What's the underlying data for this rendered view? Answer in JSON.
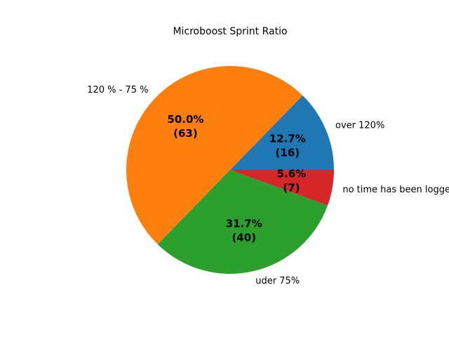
{
  "chart_data": {
    "type": "pie",
    "title": "Microboost Sprint Ratio",
    "slices": [
      {
        "label": "over 120%",
        "value": 16,
        "percent_label": "12.7%",
        "count_label": "(16)",
        "color": "#1f77b4"
      },
      {
        "label": "120 % - 75 %",
        "value": 63,
        "percent_label": "50.0%",
        "count_label": "(63)",
        "color": "#ff7f0e"
      },
      {
        "label": "uder 75%",
        "value": 40,
        "percent_label": "31.7%",
        "count_label": "(40)",
        "color": "#2ca02c"
      },
      {
        "label": "no time has been logged",
        "value": 7,
        "percent_label": "5.6%",
        "count_label": "(7)",
        "color": "#d62728"
      }
    ],
    "start_angle_deg": 0,
    "direction": "counterclockwise"
  }
}
